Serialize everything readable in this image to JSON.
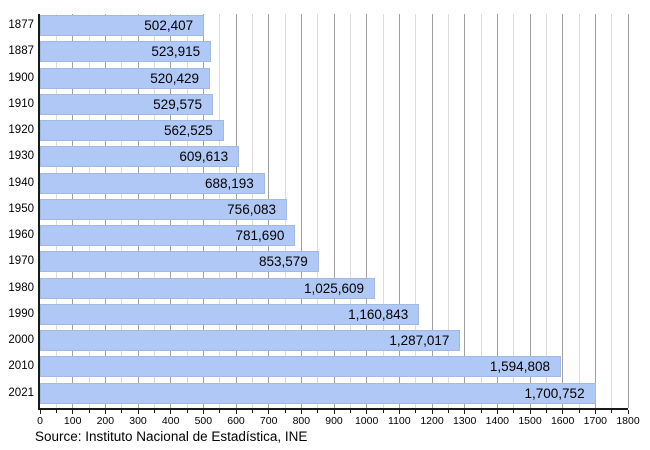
{
  "chart_data": {
    "type": "bar",
    "orientation": "horizontal",
    "title": "",
    "legend": "none",
    "grid": "vertical gridlines, minor every 50, major every 100",
    "categories": [
      "1877",
      "1887",
      "1900",
      "1910",
      "1920",
      "1930",
      "1940",
      "1950",
      "1960",
      "1970",
      "1980",
      "1990",
      "2000",
      "2010",
      "2021"
    ],
    "values": [
      502407,
      523915,
      520429,
      529575,
      562525,
      609613,
      688193,
      756083,
      781690,
      853579,
      1025609,
      1160843,
      1287017,
      1594808,
      1700752
    ],
    "value_labels": [
      "502,407",
      "523,915",
      "520,429",
      "529,575",
      "562,525",
      "609,613",
      "688,193",
      "756,083",
      "781,690",
      "853,579",
      "1,025,609",
      "1,160,843",
      "1,287,017",
      "1,594,808",
      "1,700,752"
    ],
    "x_axis": {
      "min": 0,
      "max": 1800,
      "major_step": 100,
      "minor_step": 50,
      "unit_divisor": 1000,
      "tick_labels": [
        "0",
        "100",
        "200",
        "300",
        "400",
        "500",
        "600",
        "700",
        "800",
        "900",
        "1000",
        "1100",
        "1200",
        "1300",
        "1400",
        "1500",
        "1600",
        "1700",
        "1800"
      ]
    },
    "source_note": "Source: Instituto Nacional de Estadística, INE"
  },
  "colors": {
    "bar_fill": "#b0c8f5",
    "bar_border": "#a4b9e2",
    "grid_major": "#a0a0a0",
    "grid_minor": "#dcdcdc",
    "axis": "#1a1a1a",
    "text": "#000000"
  }
}
